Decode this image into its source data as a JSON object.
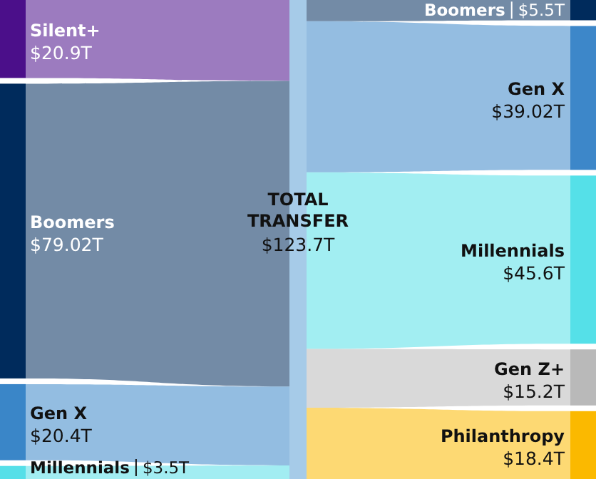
{
  "chart_data": {
    "type": "other",
    "title": "TOTAL TRANSFER",
    "subtitle": "$123.7T",
    "categories": [
      "Silent+",
      "Boomers",
      "Gen X",
      "Millennials",
      "Boomers",
      "Gen X",
      "Millennials",
      "Gen Z+",
      "Philanthropy"
    ],
    "series": [
      {
        "color": "#a6cbe8",
        "colors": [
          "#4b0f8a",
          "#002b5c",
          "#3a86c8",
          "#56dfe8",
          null,
          null,
          null,
          null,
          null
        ],
        "values": [
          20.9,
          79.02,
          20.4,
          3.5,
          null,
          null,
          null,
          null,
          null
        ],
        "value_labels": [
          "$20.9T",
          "$79.02T",
          "$20.4T",
          "$3.5T",
          null,
          null,
          null,
          null,
          null
        ]
      },
      {
        "colors": [
          null,
          null,
          null,
          null,
          "#002b5c",
          "#3d87c9",
          "#55e0e8",
          "#b9b9b9",
          "#fbb900"
        ],
        "values": [
          null,
          null,
          null,
          null,
          5.5,
          39.02,
          45.6,
          15.2,
          18.4
        ],
        "value_labels": [
          null,
          null,
          null,
          null,
          "$5.5T",
          "$39.02T",
          "$45.6T",
          "$15.2T",
          "$18.4T"
        ]
      }
    ]
  }
}
